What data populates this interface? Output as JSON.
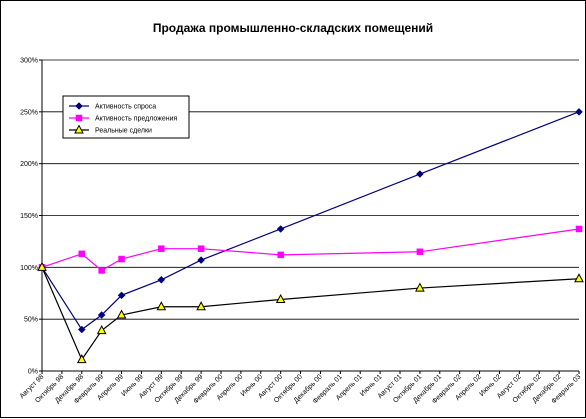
{
  "chart_data": {
    "type": "line",
    "title": "Продажа промышленно-складских помещений",
    "xlabel": "",
    "ylabel": "",
    "categories": [
      "Август 98",
      "Октябрь 98",
      "Декабрь 98",
      "Февраль 99",
      "Апрель 99",
      "Июнь 99",
      "Август 99",
      "Октябрь 99",
      "Декабрь 99",
      "Февраль 00",
      "Апрель 00",
      "Июнь 00",
      "Август 00",
      "Октябрь 00",
      "Декабрь 00",
      "Февраль 01",
      "Апрель 01",
      "Июнь 01",
      "Август 01",
      "Октябрь 01",
      "Декабрь 01",
      "Февраль 02",
      "Апрель 02",
      "Июнь 02",
      "Август 02",
      "Октябрь 02",
      "Декабрь 02",
      "Февраль 03"
    ],
    "ylim": [
      0,
      300
    ],
    "yticks": [
      "0%",
      "50%",
      "100%",
      "150%",
      "200%",
      "250%",
      "300%"
    ],
    "grid": true,
    "legend_position": "top-left",
    "series": [
      {
        "name": "Активность спроса",
        "color": "#000080",
        "marker": "diamond",
        "points": [
          [
            0,
            100
          ],
          [
            2,
            40
          ],
          [
            3,
            54
          ],
          [
            4,
            73
          ],
          [
            6,
            88
          ],
          [
            8,
            107
          ],
          [
            12,
            137
          ],
          [
            19,
            190
          ],
          [
            27,
            250
          ]
        ]
      },
      {
        "name": "Активность предложения",
        "color": "#ff00ff",
        "marker": "square",
        "points": [
          [
            0,
            100
          ],
          [
            2,
            113
          ],
          [
            3,
            97
          ],
          [
            4,
            108
          ],
          [
            6,
            118
          ],
          [
            8,
            118
          ],
          [
            12,
            112
          ],
          [
            19,
            115
          ],
          [
            27,
            137
          ]
        ]
      },
      {
        "name": "Реальные сделки",
        "color": "#000000",
        "marker": "triangle",
        "marker_fill": "#ffff00",
        "points": [
          [
            0,
            100
          ],
          [
            2,
            11
          ],
          [
            3,
            39
          ],
          [
            4,
            54
          ],
          [
            6,
            62
          ],
          [
            8,
            62
          ],
          [
            12,
            69
          ],
          [
            19,
            80
          ],
          [
            27,
            89
          ]
        ]
      }
    ]
  }
}
